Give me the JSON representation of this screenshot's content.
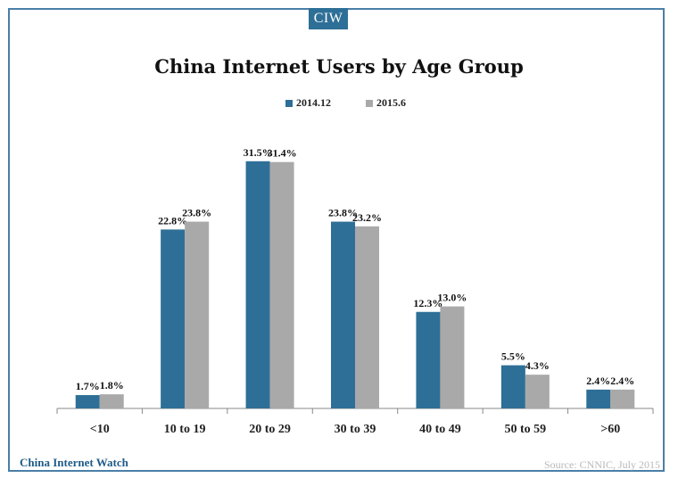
{
  "brand": {
    "logo_text": "CIW",
    "footer_left": "China Internet Watch"
  },
  "source_note": "Source: CNNIC, July 2015",
  "colors": {
    "series1": "#2e6f97",
    "series2": "#a9a9a9",
    "frame": "#4a7fa8"
  },
  "chart_data": {
    "type": "bar",
    "title": "China Internet Users by Age Group",
    "categories": [
      "<10",
      "10 to 19",
      "20 to 29",
      "30 to 39",
      "40 to 49",
      "50 to 59",
      ">60"
    ],
    "series": [
      {
        "name": "2014.12",
        "values": [
          1.7,
          22.8,
          31.5,
          23.8,
          12.3,
          5.5,
          2.4
        ],
        "labels": [
          "1.7%",
          "22.8%",
          "31.5%",
          "23.8%",
          "12.3%",
          "5.5%",
          "2.4%"
        ]
      },
      {
        "name": "2015.6",
        "values": [
          1.8,
          23.8,
          31.4,
          23.2,
          13.0,
          4.3,
          2.4
        ],
        "labels": [
          "1.8%",
          "23.8%",
          "31.4%",
          "23.2%",
          "13.0%",
          "4.3%",
          "2.4%"
        ]
      }
    ],
    "xlabel": "",
    "ylabel": "",
    "ylim": [
      0,
      35
    ],
    "grid": false,
    "legend": "top-center"
  }
}
